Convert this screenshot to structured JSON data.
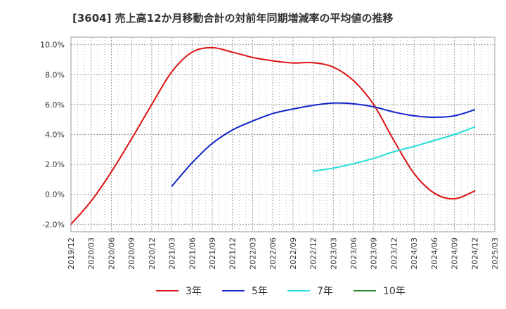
{
  "chart_data": {
    "type": "line",
    "title": "[3604]  売上高12か月移動合計の対前年同期増減率の平均値の推移",
    "xlabel": "",
    "ylabel": "",
    "x_ticks": [
      "2019/12",
      "2020/03",
      "2020/06",
      "2020/09",
      "2020/12",
      "2021/03",
      "2021/06",
      "2021/09",
      "2021/12",
      "2022/03",
      "2022/06",
      "2022/09",
      "2022/12",
      "2023/03",
      "2023/06",
      "2023/09",
      "2023/12",
      "2024/03",
      "2024/06",
      "2024/09",
      "2024/12",
      "2025/03"
    ],
    "y_ticks": [
      "-2.0%",
      "0.0%",
      "2.0%",
      "4.0%",
      "6.0%",
      "8.0%",
      "10.0%"
    ],
    "y_tick_values": [
      -2,
      0,
      2,
      4,
      6,
      8,
      10
    ],
    "ylim": [
      -2.5,
      10.5
    ],
    "grid": true,
    "legend_position": "bottom",
    "series": [
      {
        "name": "3年",
        "color": "#dd1111",
        "x": [
          "2019/12",
          "2020/03",
          "2020/06",
          "2020/09",
          "2020/12",
          "2021/03",
          "2021/06",
          "2021/09",
          "2021/12",
          "2022/03",
          "2022/06",
          "2022/09",
          "2022/12",
          "2023/03",
          "2023/06",
          "2023/09",
          "2023/12",
          "2024/03",
          "2024/06",
          "2024/09",
          "2024/12"
        ],
        "values": [
          -2.0,
          -0.45,
          1.5,
          3.7,
          6.0,
          8.2,
          9.5,
          9.8,
          9.5,
          9.15,
          8.92,
          8.78,
          8.8,
          8.5,
          7.6,
          6.0,
          3.6,
          1.4,
          0.08,
          -0.3,
          0.22
        ]
      },
      {
        "name": "5年",
        "color": "#1122cc",
        "x": [
          "2021/03",
          "2021/06",
          "2021/09",
          "2021/12",
          "2022/03",
          "2022/06",
          "2022/09",
          "2022/12",
          "2023/03",
          "2023/06",
          "2023/09",
          "2023/12",
          "2024/03",
          "2024/06",
          "2024/09",
          "2024/12"
        ],
        "values": [
          0.55,
          2.1,
          3.4,
          4.3,
          4.9,
          5.4,
          5.7,
          5.95,
          6.1,
          6.05,
          5.85,
          5.5,
          5.25,
          5.15,
          5.25,
          5.65
        ]
      },
      {
        "name": "7年",
        "color": "#22dddd",
        "x": [
          "2022/12",
          "2023/03",
          "2023/06",
          "2023/09",
          "2023/12",
          "2024/03",
          "2024/06",
          "2024/09",
          "2024/12"
        ],
        "values": [
          1.55,
          1.75,
          2.05,
          2.4,
          2.85,
          3.2,
          3.6,
          4.0,
          4.5
        ]
      },
      {
        "name": "10年",
        "color": "#228822",
        "x": [],
        "values": []
      }
    ]
  }
}
